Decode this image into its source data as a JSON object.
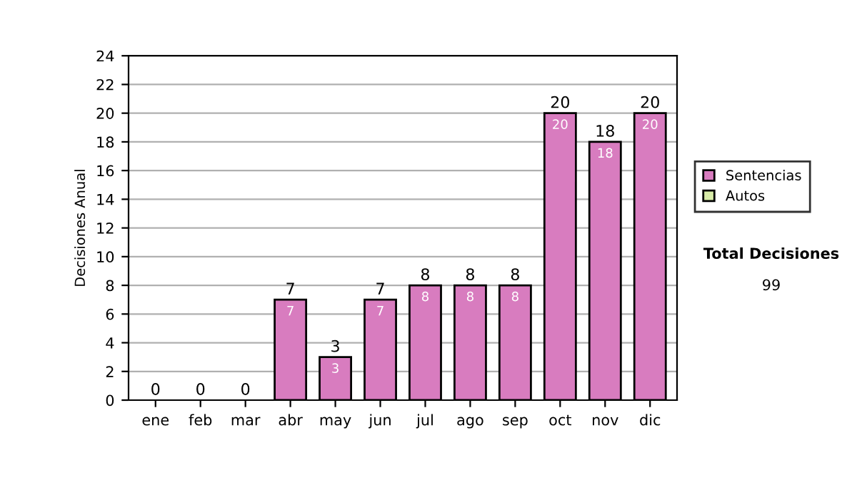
{
  "chart_data": {
    "type": "bar",
    "stacked": true,
    "ylabel": "Decisiones Anual",
    "categories": [
      "ene",
      "feb",
      "mar",
      "abr",
      "may",
      "jun",
      "jul",
      "ago",
      "sep",
      "oct",
      "nov",
      "dic"
    ],
    "series": [
      {
        "name": "Sentencias",
        "color": "#d87cbf",
        "values": [
          0,
          0,
          0,
          7,
          3,
          7,
          8,
          8,
          8,
          20,
          18,
          20
        ],
        "value_labels": [
          null,
          null,
          null,
          "7",
          "3",
          "7",
          "8",
          "8",
          "8",
          "20",
          "18",
          "20"
        ]
      },
      {
        "name": "Autos",
        "color": "#d8eca8",
        "values": [
          0,
          0,
          0,
          0,
          0,
          0,
          0,
          0,
          0,
          0,
          0,
          0
        ]
      }
    ],
    "totals": [
      "0",
      "0",
      "0",
      "7",
      "3",
      "7",
      "8",
      "8",
      "8",
      "20",
      "18",
      "20"
    ],
    "ylim": [
      0,
      24
    ],
    "yticks": [
      0,
      2,
      4,
      6,
      8,
      10,
      12,
      14,
      16,
      18,
      20,
      22,
      24
    ],
    "grid": "y",
    "legend": "right",
    "annotations": [
      "Total Decisiones",
      "99"
    ]
  }
}
